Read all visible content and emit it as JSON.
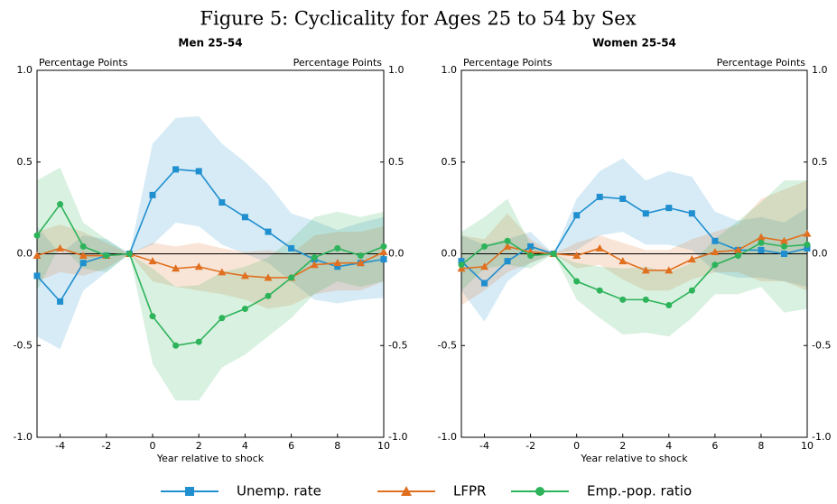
{
  "title": "Figure 5: Cyclicality for Ages 25 to 54 by Sex",
  "chart_data": [
    {
      "type": "line",
      "title": "Men 25-54",
      "ylabel": "Percentage Points",
      "y2label": "Percentage Points",
      "xlabel": "Year relative to shock",
      "x": [
        -5,
        -4,
        -3,
        -2,
        -1,
        0,
        1,
        2,
        3,
        4,
        5,
        6,
        7,
        8,
        9,
        10
      ],
      "xlim": [
        -5,
        10
      ],
      "xticks": [
        -4,
        -2,
        0,
        2,
        4,
        6,
        8,
        10
      ],
      "ylim": [
        -1,
        1
      ],
      "yticks": [
        {
          "value": -1,
          "label": "-1.0"
        },
        {
          "value": -0.5,
          "label": "-0.5"
        },
        {
          "value": 0,
          "label": "0.0"
        },
        {
          "value": 0.5,
          "label": "0.5"
        },
        {
          "value": 1,
          "label": "1.0"
        }
      ],
      "y2lim": [
        -1,
        1
      ],
      "y2ticks": [
        {
          "value": -1,
          "label": "-1.0"
        },
        {
          "value": -0.5,
          "label": "-0.5"
        },
        {
          "value": 0,
          "label": "0.0"
        },
        {
          "value": 0.5,
          "label": "0.5"
        },
        {
          "value": 1,
          "label": "1.0"
        }
      ],
      "series": [
        {
          "name": "Unemp. rate",
          "color": "#1f8fcf",
          "marker": "square",
          "values": [
            -0.12,
            -0.26,
            -0.05,
            -0.01,
            0,
            0.32,
            0.46,
            0.45,
            0.28,
            0.2,
            0.12,
            0.03,
            -0.03,
            -0.07,
            -0.05,
            -0.03
          ],
          "lower": [
            -0.45,
            -0.52,
            -0.2,
            -0.1,
            0,
            0.05,
            0.17,
            0.15,
            0.05,
            0,
            -0.05,
            -0.15,
            -0.25,
            -0.27,
            -0.25,
            -0.24
          ],
          "upper": [
            0.15,
            0,
            0.1,
            0.08,
            0,
            0.6,
            0.74,
            0.75,
            0.6,
            0.5,
            0.38,
            0.22,
            0.18,
            0.13,
            0.17,
            0.2
          ]
        },
        {
          "name": "LFPR",
          "color": "#e07020",
          "marker": "triangle",
          "values": [
            -0.01,
            0.03,
            -0.01,
            -0.01,
            0,
            -0.04,
            -0.08,
            -0.07,
            -0.1,
            -0.12,
            -0.13,
            -0.13,
            -0.06,
            -0.05,
            -0.05,
            0.01
          ],
          "lower": [
            -0.15,
            -0.1,
            -0.12,
            -0.08,
            0,
            -0.15,
            -0.18,
            -0.2,
            -0.22,
            -0.25,
            -0.3,
            -0.28,
            -0.22,
            -0.2,
            -0.2,
            -0.15
          ],
          "upper": [
            0.12,
            0.16,
            0.12,
            0.06,
            0,
            0.06,
            0.04,
            0.06,
            0.03,
            0.01,
            0.02,
            0,
            0.1,
            0.12,
            0.12,
            0.15
          ]
        },
        {
          "name": "Emp.-pop. ratio",
          "color": "#2db35a",
          "marker": "circle",
          "values": [
            0.1,
            0.27,
            0.04,
            -0.01,
            0,
            -0.34,
            -0.5,
            -0.48,
            -0.35,
            -0.3,
            -0.23,
            -0.13,
            -0.02,
            0.03,
            -0.01,
            0.04
          ],
          "lower": [
            -0.2,
            0.05,
            -0.08,
            -0.1,
            0,
            -0.6,
            -0.8,
            -0.8,
            -0.62,
            -0.55,
            -0.45,
            -0.35,
            -0.22,
            -0.15,
            -0.18,
            -0.15
          ],
          "upper": [
            0.4,
            0.47,
            0.17,
            0.08,
            0,
            -0.08,
            -0.18,
            -0.17,
            -0.1,
            -0.07,
            -0.02,
            0.08,
            0.2,
            0.23,
            0.2,
            0.23
          ]
        }
      ]
    },
    {
      "type": "line",
      "title": "Women 25-54",
      "ylabel": "Percentage Points",
      "y2label": "Percentage Points",
      "xlabel": "Year relative to shock",
      "x": [
        -5,
        -4,
        -3,
        -2,
        -1,
        0,
        1,
        2,
        3,
        4,
        5,
        6,
        7,
        8,
        9,
        10
      ],
      "xlim": [
        -5,
        10
      ],
      "xticks": [
        -4,
        -2,
        0,
        2,
        4,
        6,
        8,
        10
      ],
      "ylim": [
        -1,
        1
      ],
      "yticks": [
        {
          "value": -1,
          "label": "-1.0"
        },
        {
          "value": -0.5,
          "label": "-0.5"
        },
        {
          "value": 0,
          "label": "0.0"
        },
        {
          "value": 0.5,
          "label": "0.5"
        },
        {
          "value": 1,
          "label": "1.0"
        }
      ],
      "y2lim": [
        -1,
        1
      ],
      "y2ticks": [
        {
          "value": -1,
          "label": "-1.0"
        },
        {
          "value": -0.5,
          "label": "-0.5"
        },
        {
          "value": 0,
          "label": "0.0"
        },
        {
          "value": 0.5,
          "label": "0.5"
        },
        {
          "value": 1,
          "label": "1.0"
        }
      ],
      "series": [
        {
          "color": "#1f8fcf",
          "marker": "square",
          "values": [
            -0.04,
            -0.16,
            -0.04,
            0.04,
            0,
            0.21,
            0.31,
            0.3,
            0.22,
            0.25,
            0.22,
            0.07,
            0.02,
            0.02,
            0,
            0.03
          ],
          "lower": [
            -0.2,
            -0.37,
            -0.15,
            -0.05,
            0,
            0.02,
            0.1,
            0.12,
            0.05,
            0.05,
            0.02,
            -0.1,
            -0.13,
            -0.13,
            -0.15,
            -0.18
          ],
          "upper": [
            0.1,
            0.05,
            0.08,
            0.12,
            0,
            0.3,
            0.45,
            0.52,
            0.4,
            0.45,
            0.42,
            0.23,
            0.18,
            0.2,
            0.17,
            0.25
          ]
        },
        {
          "color": "#e07020",
          "marker": "triangle",
          "values": [
            -0.08,
            -0.07,
            0.04,
            0.01,
            0,
            -0.01,
            0.03,
            -0.04,
            -0.09,
            -0.09,
            -0.03,
            0.01,
            0.02,
            0.09,
            0.07,
            0.11
          ],
          "lower": [
            -0.28,
            -0.2,
            -0.1,
            -0.05,
            0,
            -0.08,
            -0.06,
            -0.14,
            -0.2,
            -0.2,
            -0.14,
            -0.1,
            -0.1,
            -0.15,
            -0.15,
            -0.2
          ],
          "upper": [
            0.1,
            0.08,
            0.22,
            0.08,
            0,
            0.06,
            0.1,
            0.06,
            0.02,
            0.02,
            0.08,
            0.12,
            0.16,
            0.3,
            0.35,
            0.4
          ]
        },
        {
          "color": "#2db35a",
          "marker": "circle",
          "values": [
            -0.06,
            0.04,
            0.07,
            -0.01,
            0,
            -0.15,
            -0.2,
            -0.25,
            -0.25,
            -0.28,
            -0.2,
            -0.06,
            -0.01,
            0.06,
            0.04,
            0.05
          ],
          "lower": [
            -0.2,
            -0.08,
            -0.06,
            -0.08,
            0,
            -0.25,
            -0.35,
            -0.44,
            -0.43,
            -0.45,
            -0.35,
            -0.22,
            -0.22,
            -0.18,
            -0.32,
            -0.3
          ],
          "upper": [
            0.12,
            0.2,
            0.3,
            0.05,
            0,
            -0.05,
            -0.07,
            -0.08,
            -0.07,
            -0.1,
            -0.05,
            0.08,
            0.18,
            0.28,
            0.4,
            0.4
          ]
        }
      ]
    }
  ]
}
